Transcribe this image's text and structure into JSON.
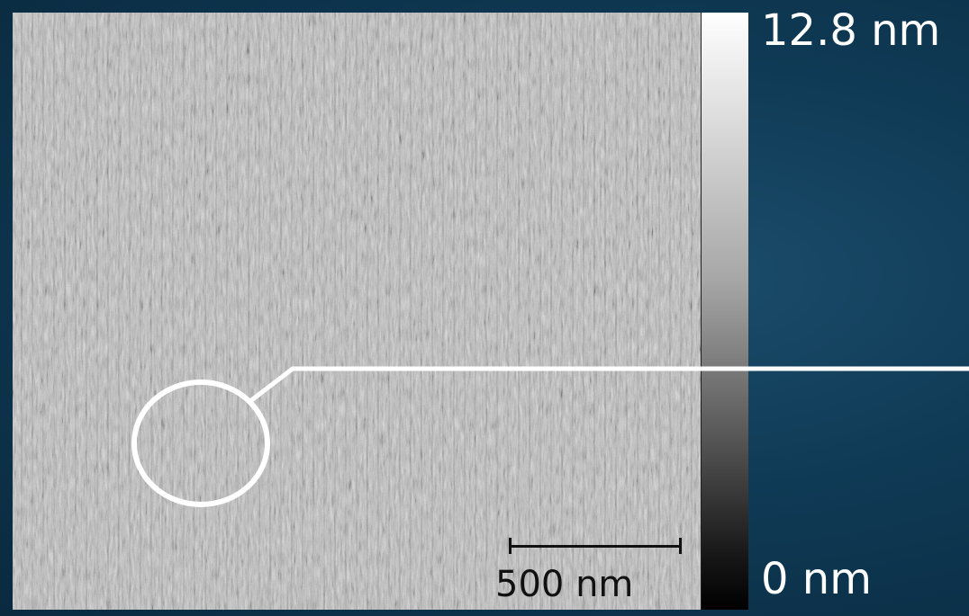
{
  "image": {
    "description_icon": "afm-topography-image",
    "colors": {
      "background": "#0f3a55",
      "annotation": "#ffffff",
      "scalebar": "#111111"
    }
  },
  "colorbar": {
    "max_label": "12.8 nm",
    "min_label": "0 nm"
  },
  "scalebar": {
    "label": "500 nm"
  }
}
